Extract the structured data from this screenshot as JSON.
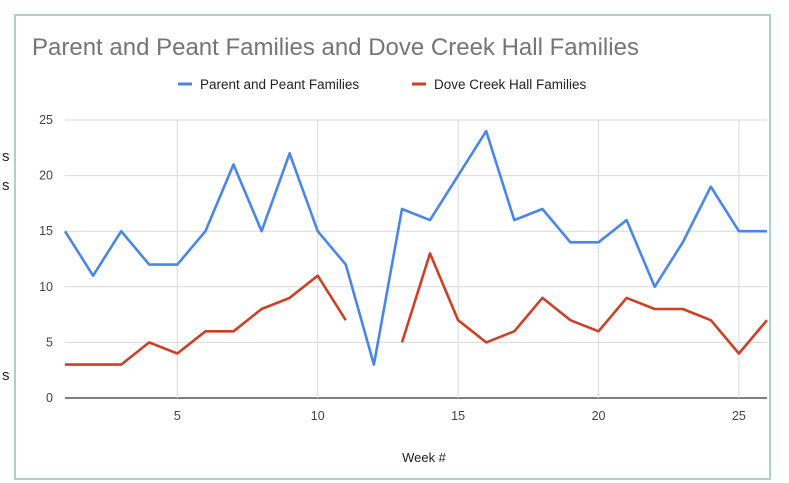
{
  "page": {
    "left_fragment_1": "s",
    "left_fragment_2": "s",
    "left_fragment_3": "s"
  },
  "chart_data": {
    "type": "line",
    "title": "Parent and Peant Families and Dove Creek Hall Families",
    "xlabel": "Week #",
    "ylabel": "",
    "xlim": [
      1,
      26
    ],
    "ylim": [
      0,
      25
    ],
    "x_ticks": [
      5,
      10,
      15,
      20,
      25
    ],
    "y_ticks": [
      0,
      5,
      10,
      15,
      20,
      25
    ],
    "grid": true,
    "legend_position": "top",
    "x": [
      1,
      2,
      3,
      4,
      5,
      6,
      7,
      8,
      9,
      10,
      11,
      12,
      13,
      14,
      15,
      16,
      17,
      18,
      19,
      20,
      21,
      22,
      23,
      24,
      25,
      26
    ],
    "series": [
      {
        "name": "Parent and Peant Families",
        "color": "#4a86e8",
        "values": [
          15,
          11,
          15,
          12,
          12,
          15,
          21,
          15,
          22,
          15,
          12,
          3,
          17,
          16,
          20,
          24,
          16,
          17,
          14,
          14,
          16,
          10,
          14,
          19,
          15,
          15
        ]
      },
      {
        "name": "Dove Creek Hall Families",
        "color": "#cc4125",
        "values": [
          3,
          3,
          3,
          5,
          4,
          6,
          6,
          8,
          9,
          11,
          7,
          null,
          5,
          13,
          7,
          5,
          6,
          9,
          7,
          6,
          9,
          8,
          8,
          7,
          4,
          7
        ]
      }
    ]
  }
}
